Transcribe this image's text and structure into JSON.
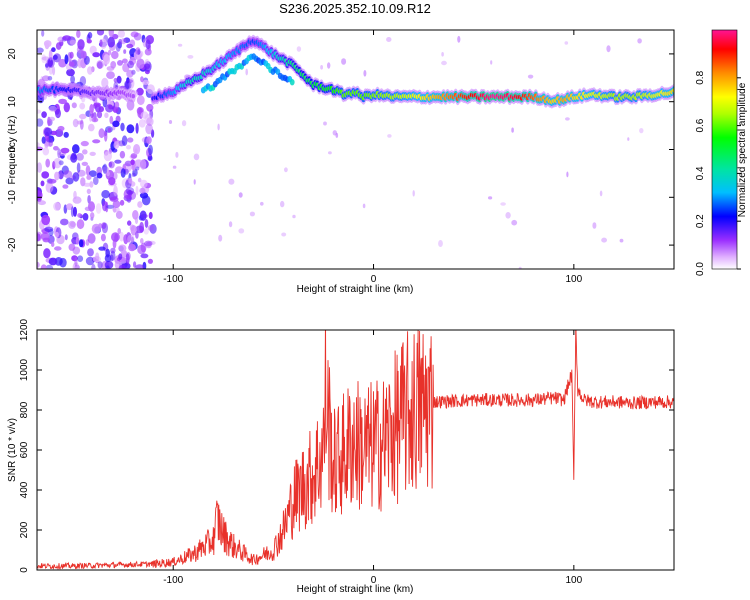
{
  "figure_title": "S236.2025.352.10.09.R12",
  "chart_data": [
    {
      "type": "heatmap",
      "panel": "top",
      "title": "S236.2025.352.10.09.R12",
      "xlabel": "Height of straight line (km)",
      "ylabel": "Frequency (Hz)",
      "xlim": [
        -168,
        150
      ],
      "ylim": [
        -25,
        25
      ],
      "x_ticks": [
        -100,
        0,
        100
      ],
      "y_ticks": [
        -20,
        -10,
        0,
        10,
        20
      ],
      "colorbar": {
        "label": "Normalized spectral amplitude",
        "range": [
          0.0,
          1.0
        ],
        "ticks": [
          0.0,
          0.2,
          0.4,
          0.6,
          0.8
        ],
        "tick_labels": [
          "0.0",
          "0.2",
          "0.4",
          "0.6",
          "0.8"
        ],
        "colors": [
          "#ffffff",
          "#e0b0ff",
          "#8a2be2",
          "#0000ff",
          "#00bfff",
          "#00ff7f",
          "#7fff00",
          "#ffff00",
          "#ff8c00",
          "#ff0000",
          "#ff1493"
        ]
      },
      "ridge": {
        "x": [
          -168,
          -160,
          -150,
          -140,
          -120,
          -110,
          -100,
          -90,
          -80,
          -70,
          -60,
          -50,
          -40,
          -30,
          -20,
          -15,
          -10,
          -5,
          0,
          10,
          20,
          40,
          60,
          70,
          80,
          90,
          95,
          100,
          110,
          120,
          130,
          140,
          150
        ],
        "freq": [
          12.5,
          12.5,
          12.2,
          12,
          11.5,
          11,
          12,
          14.5,
          17,
          20,
          23,
          20,
          17.5,
          13.5,
          12.5,
          11.5,
          12,
          11,
          11.5,
          11,
          11,
          11,
          11,
          11,
          11,
          10.2,
          10.5,
          11,
          11.5,
          11,
          11,
          11.5,
          12
        ],
        "amplitude": [
          0.3,
          0.25,
          0.2,
          0.15,
          0.1,
          0.2,
          0.3,
          0.4,
          0.35,
          0.3,
          0.25,
          0.35,
          0.45,
          0.5,
          0.55,
          0.6,
          0.6,
          0.6,
          0.62,
          0.65,
          0.7,
          0.85,
          1.0,
          0.95,
          0.85,
          0.75,
          0.8,
          0.75,
          0.7,
          0.65,
          0.65,
          0.7,
          0.75
        ]
      }
    },
    {
      "type": "line",
      "panel": "bottom",
      "xlabel": "Height of straight line (km)",
      "ylabel": "SNR (10 * v/v)",
      "xlim": [
        -168,
        150
      ],
      "ylim": [
        0,
        1200
      ],
      "x_ticks": [
        -100,
        0,
        100
      ],
      "y_ticks": [
        0,
        200,
        400,
        600,
        800,
        1000,
        1200
      ],
      "series": [
        {
          "name": "SNR",
          "color": "#e8312a",
          "x": [
            -168,
            -150,
            -130,
            -110,
            -100,
            -90,
            -80,
            -78,
            -75,
            -70,
            -60,
            -50,
            -45,
            -40,
            -35,
            -30,
            -25,
            -24,
            -20,
            -15,
            -10,
            -5,
            0,
            5,
            10,
            15,
            20,
            30,
            40,
            50,
            60,
            70,
            80,
            90,
            95,
            99,
            100,
            101,
            102,
            105,
            110,
            120,
            130,
            140,
            150
          ],
          "values": [
            20,
            20,
            25,
            30,
            40,
            80,
            150,
            260,
            180,
            120,
            50,
            100,
            200,
            350,
            420,
            480,
            600,
            880,
            520,
            580,
            650,
            600,
            620,
            640,
            700,
            760,
            800,
            840,
            845,
            850,
            850,
            850,
            850,
            860,
            850,
            980,
            450,
            1230,
            900,
            850,
            840,
            840,
            835,
            840,
            840
          ]
        }
      ]
    }
  ]
}
